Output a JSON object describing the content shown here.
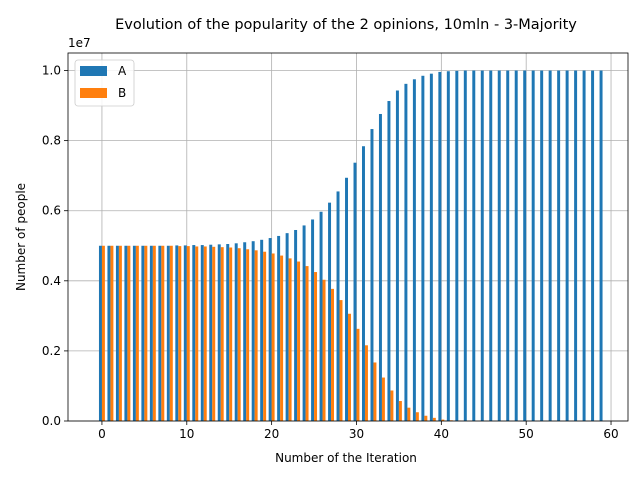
{
  "chart_data": {
    "type": "bar",
    "title": "Evolution of the popularity of the 2 opinions, 10mln - 3-Majority",
    "xlabel": "Number of the Iteration",
    "ylabel": "Number of people",
    "y_offset_label": "1e7",
    "xlim": [
      -4,
      62
    ],
    "ylim": [
      0,
      1.05
    ],
    "x_ticks": [
      0,
      10,
      20,
      30,
      40,
      50,
      60
    ],
    "x_tick_labels": [
      "0",
      "10",
      "20",
      "30",
      "40",
      "50",
      "60"
    ],
    "y_ticks": [
      0,
      0.2,
      0.4,
      0.6,
      0.8,
      1.0
    ],
    "y_tick_labels": [
      "0.0",
      "0.2",
      "0.4",
      "0.6",
      "0.8",
      "1.0"
    ],
    "grid": true,
    "legend_position": "top-left",
    "x": [
      0,
      1,
      2,
      3,
      4,
      5,
      6,
      7,
      8,
      9,
      10,
      11,
      12,
      13,
      14,
      15,
      16,
      17,
      18,
      19,
      20,
      21,
      22,
      23,
      24,
      25,
      26,
      27,
      28,
      29,
      30,
      31,
      32,
      33,
      34,
      35,
      36,
      37,
      38,
      39,
      40,
      41,
      42,
      43,
      44,
      45,
      46,
      47,
      48,
      49,
      50,
      51,
      52,
      53,
      54,
      55,
      56,
      57,
      58,
      59
    ],
    "series": [
      {
        "name": "A",
        "color": "#1f77b4",
        "values": [
          0.5,
          0.5,
          0.5,
          0.5,
          0.5,
          0.5,
          0.5,
          0.5,
          0.5,
          0.501,
          0.501,
          0.502,
          0.502,
          0.503,
          0.504,
          0.505,
          0.507,
          0.51,
          0.513,
          0.517,
          0.522,
          0.528,
          0.536,
          0.545,
          0.558,
          0.575,
          0.597,
          0.623,
          0.655,
          0.694,
          0.737,
          0.784,
          0.833,
          0.876,
          0.913,
          0.943,
          0.962,
          0.975,
          0.985,
          0.991,
          0.996,
          0.998,
          0.999,
          1.0,
          1.0,
          1.0,
          1.0,
          1.0,
          1.0,
          1.0,
          1.0,
          1.0,
          1.0,
          1.0,
          1.0,
          1.0,
          1.0,
          1.0,
          1.0,
          1.0
        ]
      },
      {
        "name": "B",
        "color": "#ff7f0e",
        "values": [
          0.5,
          0.5,
          0.5,
          0.5,
          0.5,
          0.5,
          0.5,
          0.5,
          0.5,
          0.499,
          0.499,
          0.498,
          0.498,
          0.497,
          0.496,
          0.495,
          0.493,
          0.49,
          0.487,
          0.483,
          0.478,
          0.472,
          0.464,
          0.455,
          0.442,
          0.425,
          0.403,
          0.377,
          0.345,
          0.306,
          0.263,
          0.216,
          0.167,
          0.124,
          0.087,
          0.057,
          0.038,
          0.025,
          0.015,
          0.009,
          0.004,
          0.002,
          0.001,
          0.0,
          0.0,
          0.0,
          0.0,
          0.0,
          0.0,
          0.0,
          0.0,
          0.0,
          0.0,
          0.0,
          0.0,
          0.0,
          0.0,
          0.0,
          0.0,
          0.0
        ]
      }
    ]
  }
}
